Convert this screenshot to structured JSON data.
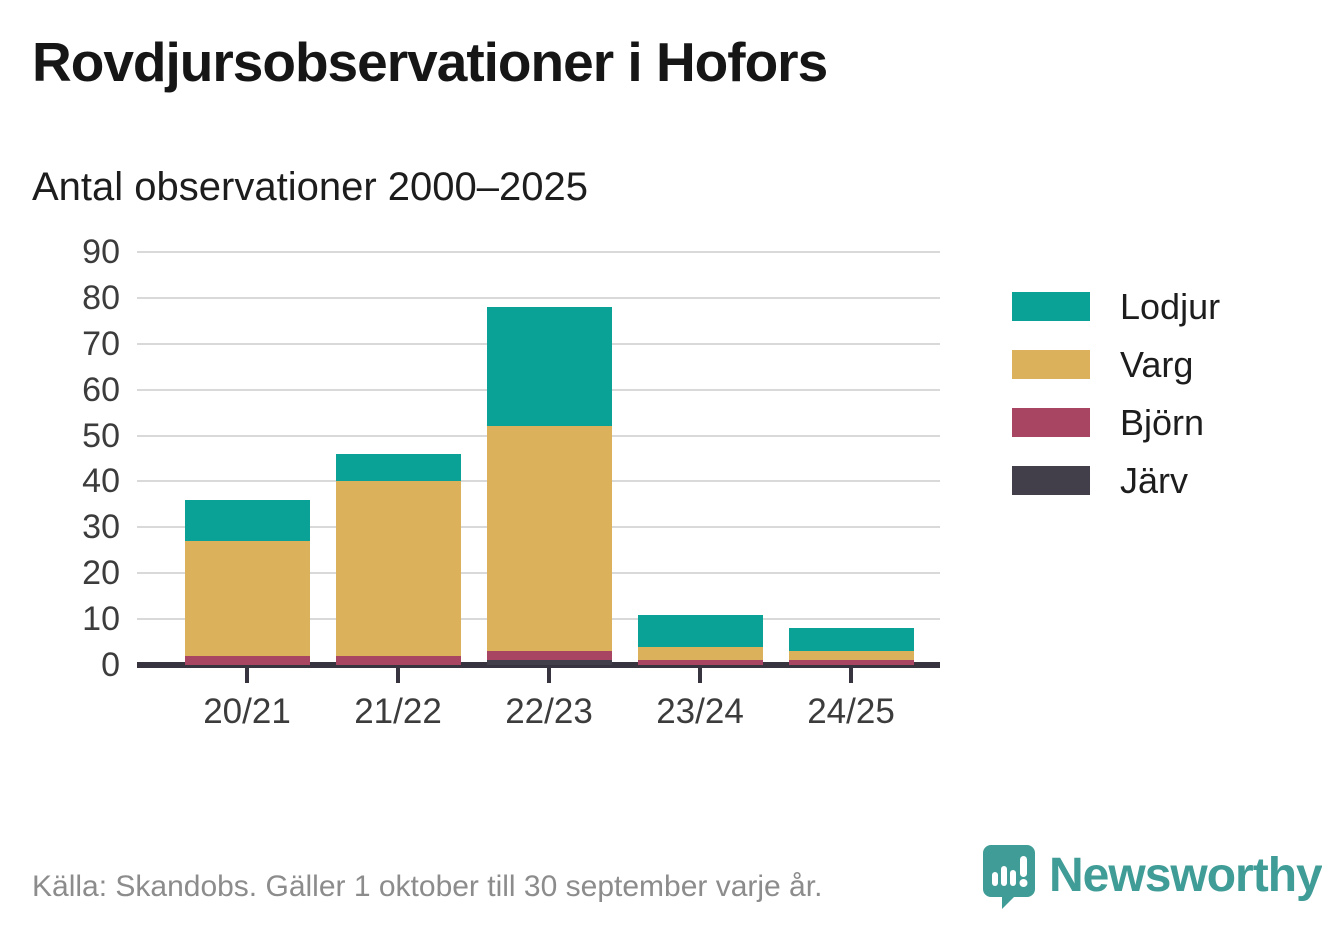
{
  "header": {
    "title": "Rovdjursobservationer i Hofors",
    "subtitle": "Antal observationer 2000–2025"
  },
  "footer": {
    "source": "Källa: Skandobs. Gäller 1 oktober till 30 september varje år.",
    "brand": "Newsworthy"
  },
  "colors": {
    "lodjur": "#0aa296",
    "varg": "#dcb15c",
    "bjorn": "#a74562",
    "jarv": "#423e4a",
    "axis": "#37333f",
    "grid": "#d9d9d9",
    "brand_teal": "#3f9c96",
    "footer_gray": "#8c8c8c"
  },
  "chart_data": {
    "type": "bar",
    "stacked": true,
    "title": "Rovdjursobservationer i Hofors",
    "subtitle": "Antal observationer 2000–2025",
    "categories": [
      "20/21",
      "21/22",
      "22/23",
      "23/24",
      "24/25"
    ],
    "series": [
      {
        "name": "Lodjur",
        "color": "#0aa296",
        "values": [
          9,
          6,
          26,
          7,
          5
        ]
      },
      {
        "name": "Varg",
        "color": "#dcb15c",
        "values": [
          25,
          38,
          49,
          3,
          2
        ]
      },
      {
        "name": "Björn",
        "color": "#a74562",
        "values": [
          2,
          2,
          2,
          1,
          1
        ]
      },
      {
        "name": "Järv",
        "color": "#423e4a",
        "values": [
          0,
          0,
          1,
          0,
          0
        ]
      }
    ],
    "stack_order_bottom_to_top": [
      "Järv",
      "Björn",
      "Varg",
      "Lodjur"
    ],
    "totals": [
      36,
      46,
      78,
      11,
      8
    ],
    "xlabel": "",
    "ylabel": "",
    "ylim": [
      0,
      90
    ],
    "ytick_step": 10,
    "yticks": [
      0,
      10,
      20,
      30,
      40,
      50,
      60,
      70,
      80,
      90
    ],
    "grid": true,
    "legend_position": "right",
    "legend_order": [
      "Lodjur",
      "Varg",
      "Björn",
      "Järv"
    ]
  }
}
